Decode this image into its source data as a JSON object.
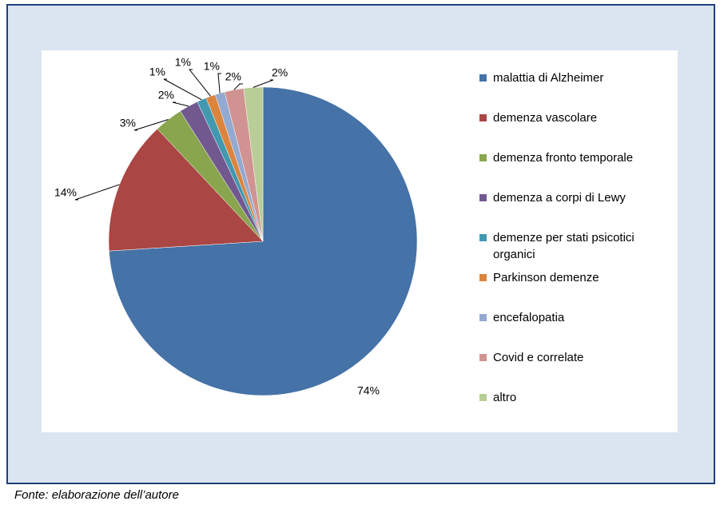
{
  "chart_data": {
    "type": "pie",
    "categories": [
      "malattia di Alzheimer",
      "demenza vascolare",
      "demenza fronto temporale",
      "demenza a corpi di Lewy",
      "demenze per stati psicotici organici",
      "Parkinson demenze",
      "encefalopatia",
      "Covid e correlate",
      "altro"
    ],
    "values": [
      74,
      14,
      3,
      2,
      1,
      1,
      1,
      2,
      2
    ],
    "value_labels": [
      "74%",
      "14%",
      "3%",
      "2%",
      "1%",
      "1%",
      "1%",
      "2%",
      "2%"
    ],
    "colors": [
      "#4572a7",
      "#aa4643",
      "#89a54e",
      "#71588f",
      "#4198af",
      "#db843d",
      "#93a9cf",
      "#d19392",
      "#b9cd96"
    ],
    "legend": "right"
  },
  "source": "Fonte: elaborazione dell’autore"
}
